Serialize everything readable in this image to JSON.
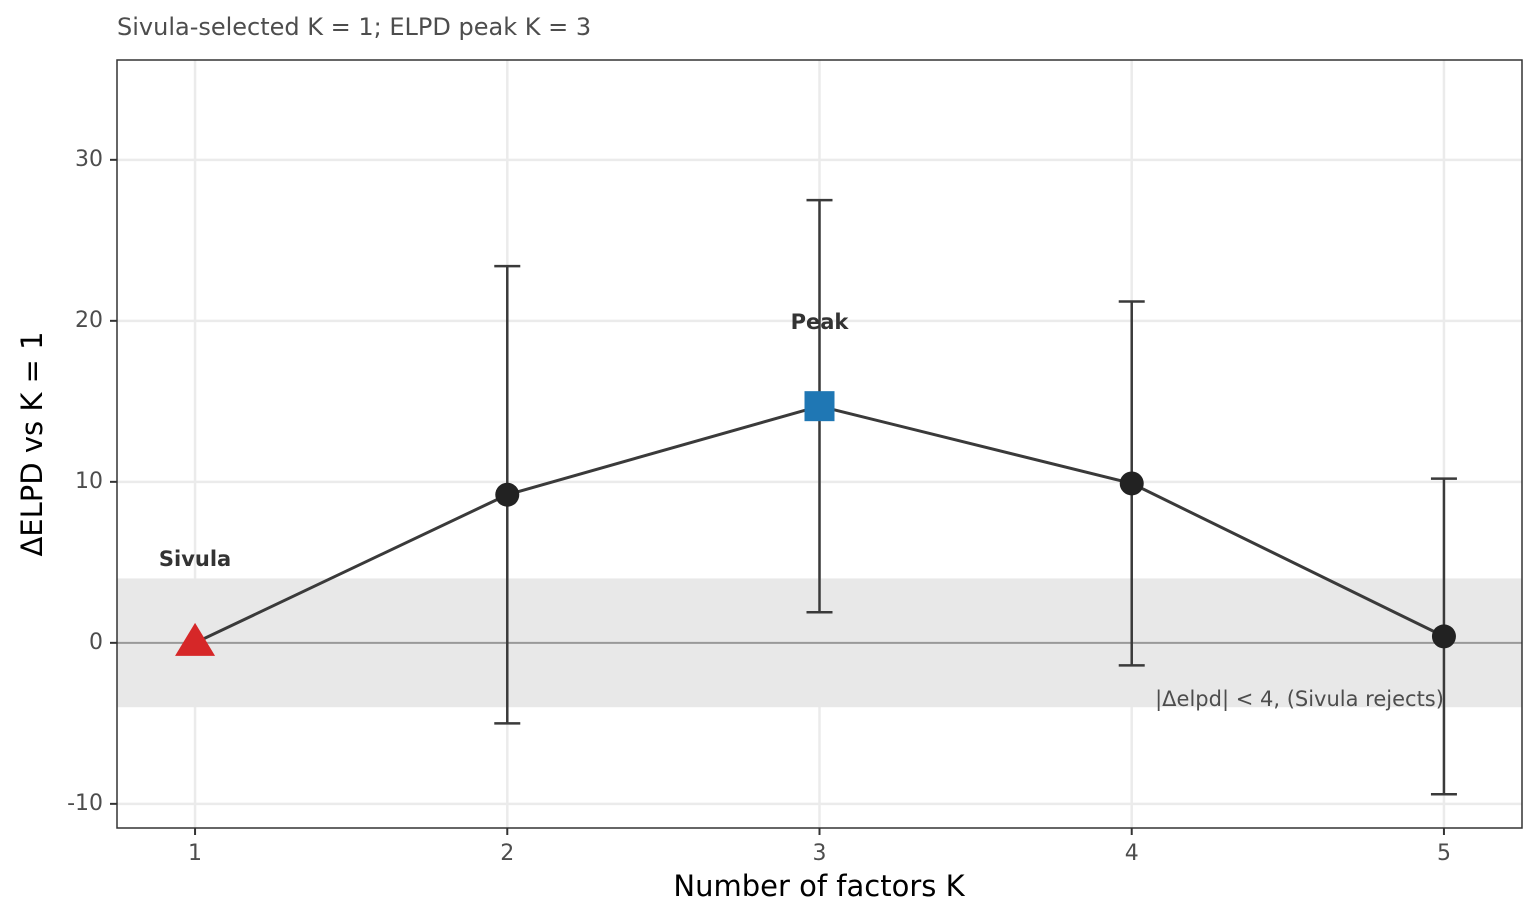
{
  "chart_data": {
    "type": "line",
    "title": "Sivula-selected K = 1; ELPD peak K = 3",
    "x_label": "Number of factors K",
    "y_label": "ΔELPD vs K = 1",
    "x": [
      1,
      2,
      3,
      4,
      5
    ],
    "values": [
      0,
      9.2,
      14.7,
      9.9,
      0.4
    ],
    "errors": [
      null,
      14.2,
      12.8,
      11.3,
      9.8
    ],
    "color": "#3a3a3a",
    "markers": [
      "triangle",
      "circle",
      "square",
      "circle",
      "circle"
    ],
    "marker_colors": [
      "#d62728",
      "#222222",
      "#1f77b4",
      "#222222",
      "#222222"
    ],
    "point_labels": [
      "Sivula",
      null,
      "Peak",
      null,
      null
    ],
    "band": [
      -4,
      4
    ],
    "band_color": "#e8e8e8",
    "band_label": "|Δelpd| < 4,  (Sivula rejects)",
    "hline": 0,
    "xlim": [
      0.75,
      5.25
    ],
    "xticks": [
      1,
      2,
      3,
      4,
      5
    ],
    "ylim": [
      -11.5,
      36.2
    ],
    "yticks": [
      -10,
      0,
      10,
      20,
      30
    ],
    "grid": true
  }
}
